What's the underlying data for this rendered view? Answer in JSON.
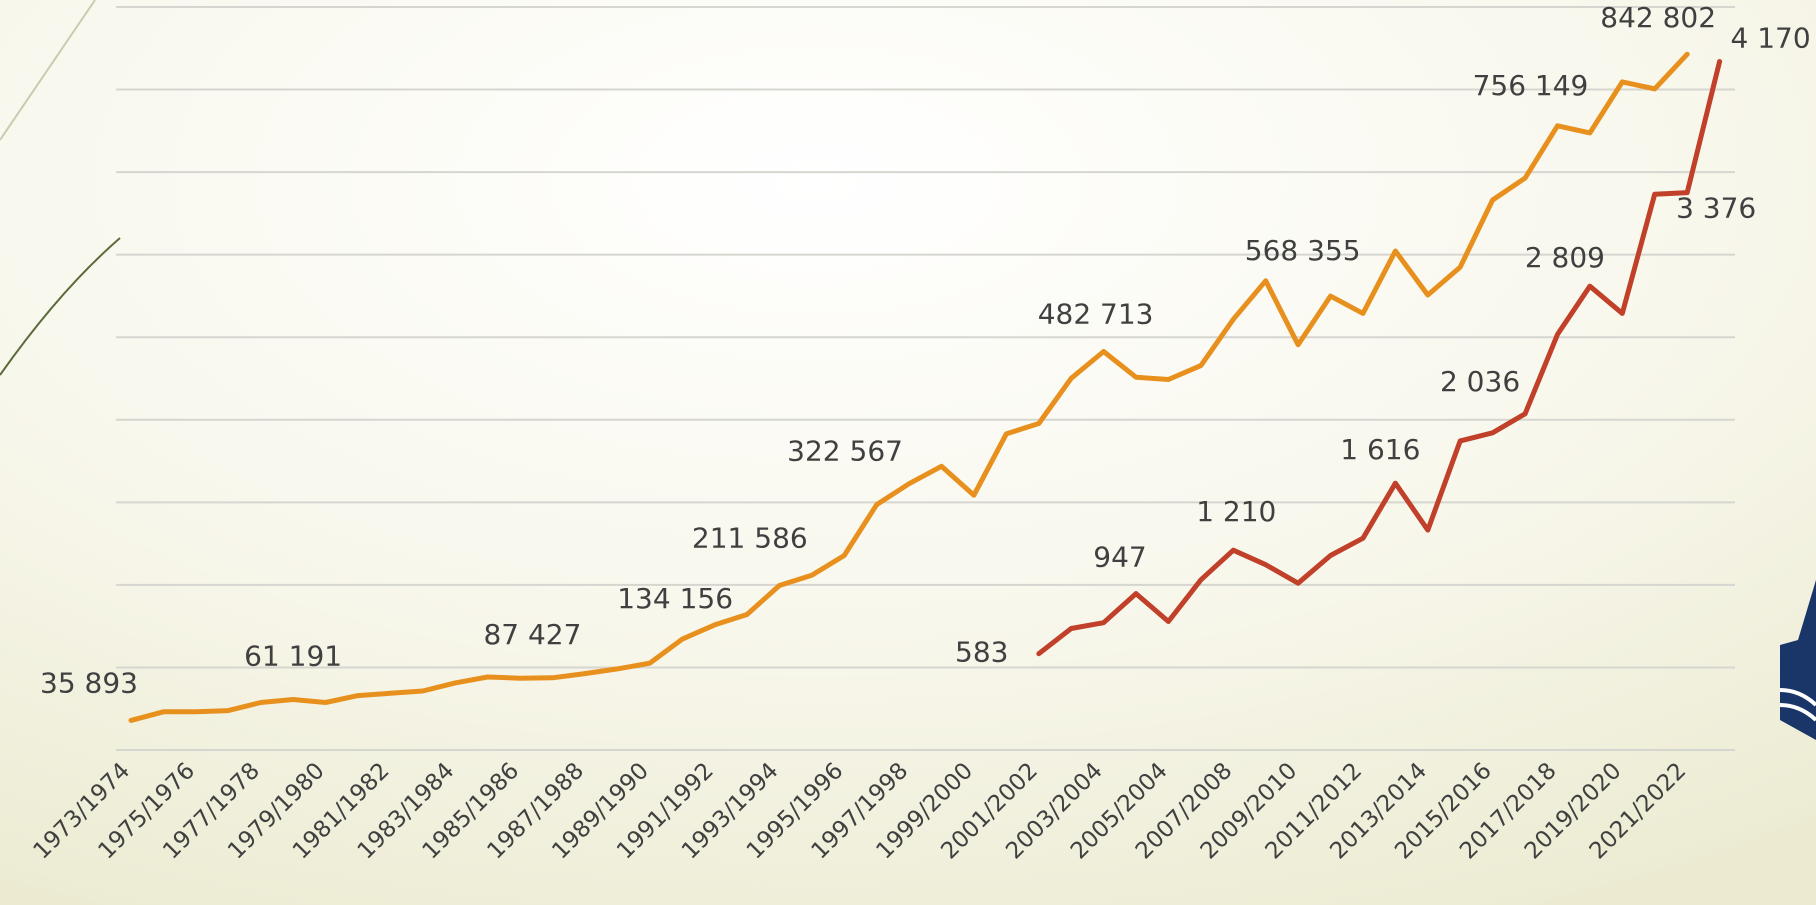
{
  "chart_data": {
    "type": "line",
    "categories": [
      "1973/1974",
      null,
      "1975/1976",
      null,
      "1977/1978",
      null,
      "1979/1980",
      null,
      "1981/1982",
      null,
      "1983/1984",
      null,
      "1985/1986",
      null,
      "1987/1988",
      null,
      "1989/1990",
      null,
      "1991/1992",
      null,
      "1993/1994",
      null,
      "1995/1996",
      null,
      "1997/1998",
      null,
      "1999/2000",
      null,
      "2001/2002",
      null,
      "2003/2004",
      null,
      "2005/2004",
      null,
      "2007/2008",
      null,
      "2009/2010",
      null,
      "2011/2012",
      null,
      "2013/2014",
      null,
      "2015/2016",
      null,
      "2017/2018",
      null,
      "2019/2020",
      null,
      "2021/2022",
      null
    ],
    "series": [
      {
        "color": "#e8901e",
        "values": [
          35893,
          46300,
          46300,
          47700,
          57500,
          61191,
          57500,
          65900,
          68700,
          71500,
          81300,
          88400,
          87000,
          87427,
          92600,
          98200,
          105200,
          134156,
          151500,
          164100,
          199200,
          211586,
          235600,
          297300,
          322567,
          343600,
          308600,
          382900,
          395500,
          450200,
          482713,
          451600,
          448800,
          465600,
          521700,
          568355,
          490900,
          549800,
          528800,
          604500,
          551200,
          584900,
          666200,
          692800,
          756149,
          747500,
          809300,
          800800,
          842802,
          null
        ],
        "value_labels": [
          "35 893",
          null,
          null,
          null,
          null,
          "61 191",
          null,
          null,
          null,
          null,
          null,
          null,
          null,
          "87 427",
          null,
          null,
          null,
          "134 156",
          null,
          null,
          null,
          "211 586",
          null,
          null,
          "322 567",
          null,
          null,
          null,
          null,
          null,
          "482 713",
          null,
          null,
          null,
          null,
          "568 355",
          null,
          null,
          null,
          null,
          null,
          null,
          null,
          null,
          "756 149",
          null,
          null,
          null,
          "842 802",
          null
        ]
      },
      {
        "color": "#c0402a",
        "axis": "y2",
        "values": [
          null,
          null,
          null,
          null,
          null,
          null,
          null,
          null,
          null,
          null,
          null,
          null,
          null,
          null,
          null,
          null,
          null,
          null,
          null,
          null,
          null,
          null,
          null,
          null,
          null,
          null,
          null,
          null,
          583,
          736,
          771,
          947,
          778,
          1031,
          1210,
          1122,
          1010,
          1178,
          1283,
          1616,
          1332,
          1872,
          1921,
          2036,
          2517,
          2809,
          2644,
          3366,
          3376,
          4170
        ],
        "value_labels": [
          null,
          null,
          null,
          null,
          null,
          null,
          null,
          null,
          null,
          null,
          null,
          null,
          null,
          null,
          null,
          null,
          null,
          null,
          null,
          null,
          null,
          null,
          null,
          null,
          null,
          null,
          null,
          null,
          "583",
          null,
          null,
          "947",
          null,
          null,
          "1 210",
          null,
          null,
          null,
          null,
          "1 616",
          null,
          null,
          null,
          "2 036",
          null,
          "2 809",
          null,
          null,
          "3 376",
          "4 170"
        ]
      }
    ],
    "ylim": [
      0,
      900000
    ],
    "yticks": [
      0,
      100000,
      200000,
      300000,
      400000,
      500000,
      600000,
      700000,
      800000,
      900000
    ],
    "y2lim": [
      0,
      4500
    ],
    "grid": true
  }
}
